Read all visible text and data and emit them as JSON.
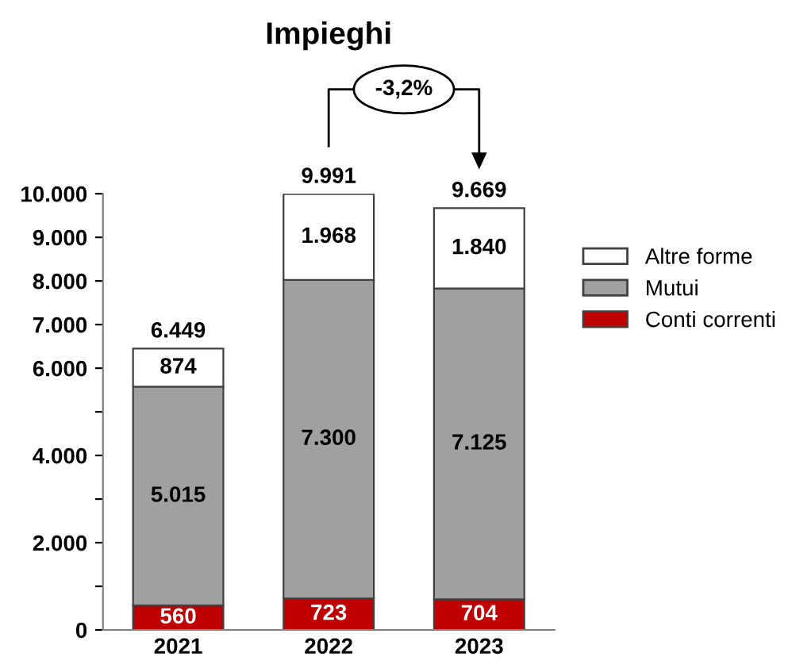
{
  "chart_data": {
    "type": "bar",
    "title": "Impieghi",
    "stacked": true,
    "categories": [
      "2021",
      "2022",
      "2023"
    ],
    "series": [
      {
        "name": "Conti correnti",
        "color": "#c00000",
        "values": [
          560,
          723,
          704
        ],
        "value_labels": [
          "560",
          "723",
          "704"
        ]
      },
      {
        "name": "Mutui",
        "color": "#a0a0a0",
        "values": [
          5015,
          7300,
          7125
        ],
        "value_labels": [
          "5.015",
          "7.300",
          "7.125"
        ]
      },
      {
        "name": "Altre forme",
        "color": "#ffffff",
        "values": [
          874,
          1968,
          1840
        ],
        "value_labels": [
          "874",
          "1.968",
          "1.840"
        ]
      }
    ],
    "totals": [
      "6.449",
      "9.991",
      "9.669"
    ],
    "annotations": [
      "-3,2%"
    ],
    "ylim": [
      0,
      10000
    ],
    "yticks": [
      0,
      {
        "value": 1000,
        "label": null
      },
      {
        "value": 2000,
        "label": "2.000"
      },
      {
        "value": 3000,
        "label": null
      },
      {
        "value": 4000,
        "label": "4.000"
      },
      {
        "value": 5000,
        "label": null
      },
      {
        "value": 6000,
        "label": "6.000"
      },
      {
        "value": 7000,
        "label": "7.000"
      },
      {
        "value": 8000,
        "label": "8.000"
      },
      {
        "value": 9000,
        "label": "9.000"
      },
      {
        "value": 10000,
        "label": "10.000"
      }
    ],
    "grid": false,
    "legend": "right"
  }
}
